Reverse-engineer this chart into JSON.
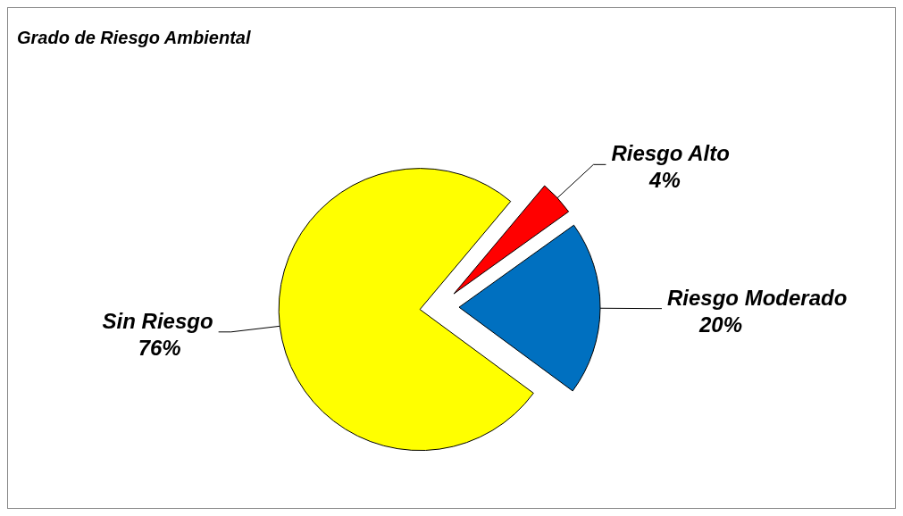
{
  "chart_data": {
    "type": "pie",
    "title": "Grado de Riesgo  Ambiental",
    "categories": [
      "Riesgo Alto",
      "Riesgo Moderado",
      "Sin Riesgo"
    ],
    "values": [
      4,
      20,
      76
    ],
    "colors": [
      "#ff0000",
      "#0070c0",
      "#ffff00"
    ],
    "value_labels": [
      "4%",
      "20%",
      "76%"
    ]
  }
}
